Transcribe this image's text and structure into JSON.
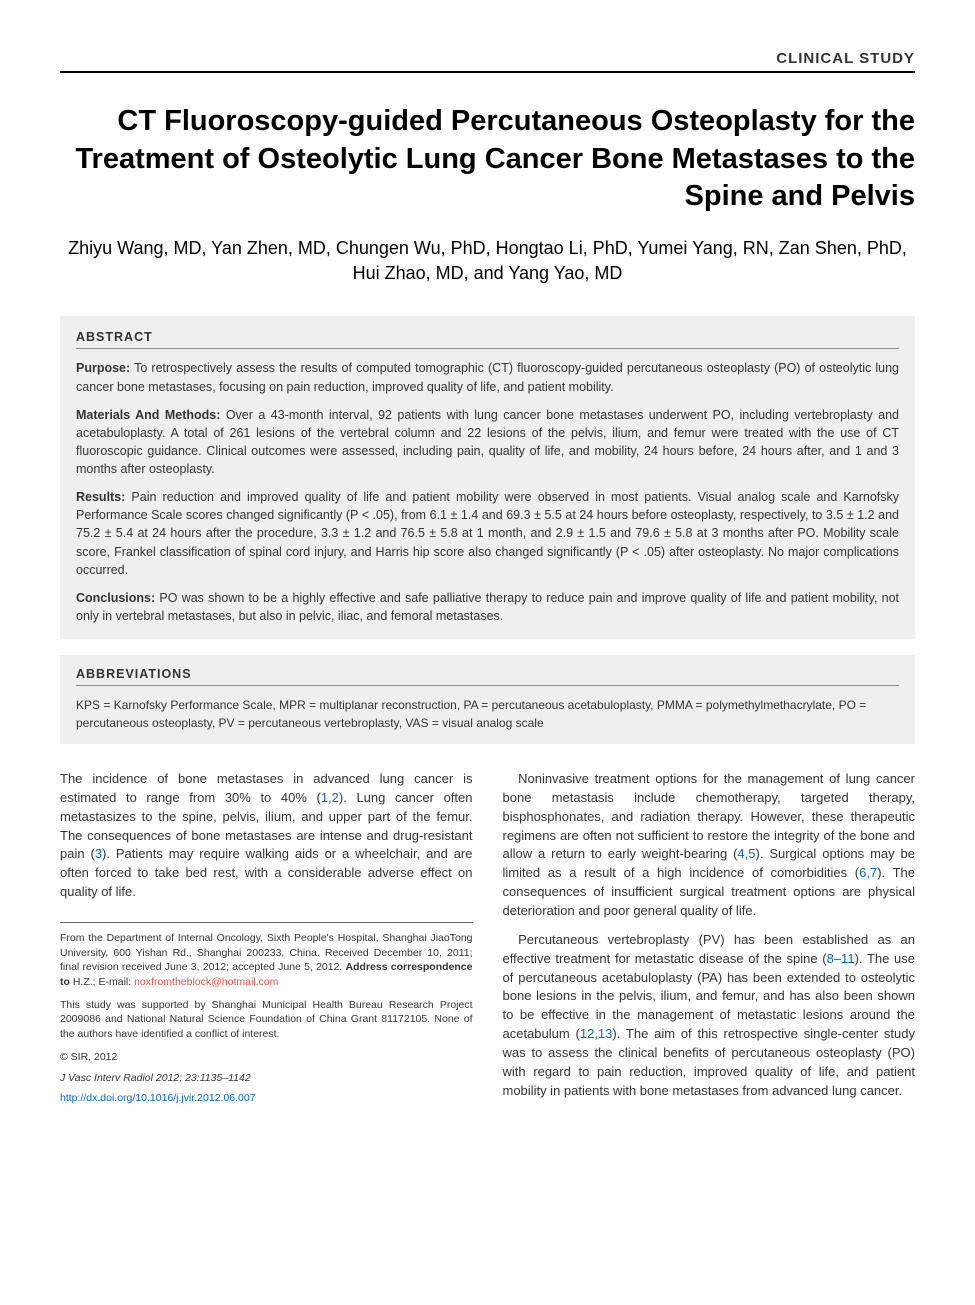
{
  "section_label": "CLINICAL STUDY",
  "title": "CT Fluoroscopy-guided Percutaneous Osteoplasty for the Treatment of Osteolytic Lung Cancer Bone Metastases to the Spine and Pelvis",
  "authors": "Zhiyu Wang, MD, Yan Zhen, MD, Chungen Wu, PhD, Hongtao Li, PhD, Yumei Yang, RN, Zan Shen, PhD, Hui Zhao, MD, and Yang Yao, MD",
  "abstract": {
    "heading": "ABSTRACT",
    "purpose_label": "Purpose:",
    "purpose": " To retrospectively assess the results of computed tomographic (CT) fluoroscopy-guided percutaneous osteoplasty (PO) of osteolytic lung cancer bone metastases, focusing on pain reduction, improved quality of life, and patient mobility.",
    "methods_label": "Materials And Methods:",
    "methods": " Over a 43-month interval, 92 patients with lung cancer bone metastases underwent PO, including vertebroplasty and acetabuloplasty. A total of 261 lesions of the vertebral column and 22 lesions of the pelvis, ilium, and femur were treated with the use of CT fluoroscopic guidance. Clinical outcomes were assessed, including pain, quality of life, and mobility, 24 hours before, 24 hours after, and 1 and 3 months after osteoplasty.",
    "results_label": "Results:",
    "results": " Pain reduction and improved quality of life and patient mobility were observed in most patients. Visual analog scale and Karnofsky Performance Scale scores changed significantly (P < .05), from 6.1 ± 1.4 and 69.3 ± 5.5 at 24 hours before osteoplasty, respectively, to 3.5 ± 1.2 and 75.2 ± 5.4 at 24 hours after the procedure, 3.3 ± 1.2 and 76.5 ± 5.8 at 1 month, and 2.9 ± 1.5 and 79.6 ± 5.8 at 3 months after PO. Mobility scale score, Frankel classification of spinal cord injury, and Harris hip score also changed significantly (P < .05) after osteoplasty. No major complications occurred.",
    "conclusions_label": "Conclusions:",
    "conclusions": " PO was shown to be a highly effective and safe palliative therapy to reduce pain and improve quality of life and patient mobility, not only in vertebral metastases, but also in pelvic, iliac, and femoral metastases."
  },
  "abbreviations": {
    "heading": "ABBREVIATIONS",
    "text": "KPS = Karnofsky Performance Scale, MPR = multiplanar reconstruction, PA = percutaneous acetabuloplasty, PMMA = polymethylmethacrylate, PO = percutaneous osteoplasty, PV = percutaneous vertebroplasty, VAS = visual analog scale"
  },
  "body": {
    "left_p1_a": "The incidence of bone metastases in advanced lung cancer is estimated to range from 30% to 40% (",
    "left_p1_ref1": "1,2",
    "left_p1_b": "). Lung cancer often metastasizes to the spine, pelvis, ilium, and upper part of the femur. The consequences of bone metastases are intense and drug-resistant pain (",
    "left_p1_ref2": "3",
    "left_p1_c": "). Patients may require walking aids or a wheelchair, and are often forced to take bed rest, with a considerable adverse effect on quality of life.",
    "right_p1_a": "Noninvasive treatment options for the management of lung cancer bone metastasis include chemotherapy, targeted therapy, bisphosphonates, and radiation therapy. However, these therapeutic regimens are often not sufficient to restore the integrity of the bone and allow a return to early weight-bearing (",
    "right_p1_ref1": "4,5",
    "right_p1_b": "). Surgical options may be limited as a result of a high incidence of comorbidities (",
    "right_p1_ref2": "6,7",
    "right_p1_c": "). The consequences of insufficient surgical treatment options are physical deterioration and poor general quality of life.",
    "right_p2_a": "Percutaneous vertebroplasty (PV) has been established as an effective treatment for metastatic disease of the spine (",
    "right_p2_ref1": "8–11",
    "right_p2_b": "). The use of percutaneous acetabuloplasty (PA) has been extended to osteolytic bone lesions in the pelvis, ilium, and femur, and has also been shown to be effective in the management of metastatic lesions around the acetabulum (",
    "right_p2_ref2": "12,13",
    "right_p2_c": "). The aim of this retrospective single-center study was to assess the clinical benefits of percutaneous osteoplasty (PO) with regard to pain reduction, improved quality of life, and patient mobility in patients with bone metastases from advanced lung cancer."
  },
  "footnotes": {
    "affiliation_a": "From the Department of Internal Oncology, Sixth People's Hospital, Shanghai JiaoTong University, 600 Yishan Rd., Shanghai 200233, China. Received December 10, 2011; final revision received June 3, 2012; accepted June 5, 2012. ",
    "affiliation_b": "Address correspondence to",
    "affiliation_c": " H.Z.; E-mail: ",
    "email": "noxfromtheblock@hotmail.com",
    "funding": "This study was supported by Shanghai Municipal Health Bureau Research Project 2009086 and National Natural Science Foundation of China Grant 81172105. None of the authors have identified a conflict of interest.",
    "copyright": "© SIR, 2012",
    "citation": "J Vasc Interv Radiol 2012; 23:1135–1142",
    "doi": "http://dx.doi.org/10.1016/j.jvir.2012.06.007"
  },
  "colors": {
    "background": "#ffffff",
    "box_bg": "#efefef",
    "text": "#333333",
    "link": "#0066cc",
    "email": "#d9534f"
  }
}
